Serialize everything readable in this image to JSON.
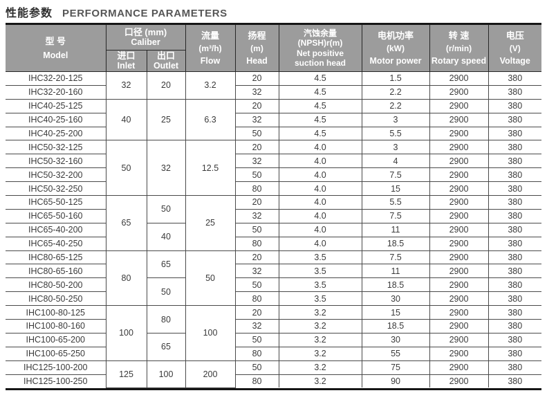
{
  "title": {
    "zh": "性能参数",
    "en": "PERFORMANCE PARAMETERS"
  },
  "colors": {
    "header_bg": "#9c9c9c",
    "header_text": "#ffffff",
    "title_zh": "#2f2f2f",
    "title_en": "#565656",
    "body_text": "#3a3a3a",
    "inner_border": "#494949",
    "outer_border": "#161616"
  },
  "table": {
    "header": {
      "model": {
        "zh": "型 号",
        "en": "Model"
      },
      "caliber": {
        "zh": "口径 (mm)",
        "en": "Caliber"
      },
      "inlet": {
        "zh": "进口",
        "en": "Inlet"
      },
      "outlet": {
        "zh": "出口",
        "en": "Outlet"
      },
      "flow": {
        "zh": "流量",
        "unit": "(m³/h)",
        "en": "Flow"
      },
      "head": {
        "zh": "扬程",
        "unit": "(m)",
        "en": "Head"
      },
      "npsh": {
        "zh": "汽蚀余量",
        "unit": "(NPSH)r(m)",
        "en_line1": "Net positive",
        "en_line2": "suction head"
      },
      "power": {
        "zh": "电机功率",
        "unit": "(kW)",
        "en": "Motor power"
      },
      "speed": {
        "zh": "转 速",
        "unit": "(r/min)",
        "en": "Rotary speed"
      },
      "voltage": {
        "zh": "电压",
        "unit": "(V)",
        "en": "Voltage"
      }
    },
    "rows": [
      [
        {
          "col": "model",
          "v": "IHC32-20-125"
        },
        {
          "col": "inlet",
          "v": "32",
          "rs": 2
        },
        {
          "col": "outlet",
          "v": "20",
          "rs": 2
        },
        {
          "col": "flow",
          "v": "3.2",
          "rs": 2
        },
        {
          "col": "head",
          "v": "20"
        },
        {
          "col": "npsh",
          "v": "4.5"
        },
        {
          "col": "power",
          "v": "1.5"
        },
        {
          "col": "speed",
          "v": "2900"
        },
        {
          "col": "voltage",
          "v": "380"
        }
      ],
      [
        {
          "col": "model",
          "v": "IHC32-20-160"
        },
        {
          "col": "head",
          "v": "32"
        },
        {
          "col": "npsh",
          "v": "4.5"
        },
        {
          "col": "power",
          "v": "2.2"
        },
        {
          "col": "speed",
          "v": "2900"
        },
        {
          "col": "voltage",
          "v": "380"
        }
      ],
      [
        {
          "col": "model",
          "v": "IHC40-25-125"
        },
        {
          "col": "inlet",
          "v": "40",
          "rs": 3
        },
        {
          "col": "outlet",
          "v": "25",
          "rs": 3
        },
        {
          "col": "flow",
          "v": "6.3",
          "rs": 3
        },
        {
          "col": "head",
          "v": "20"
        },
        {
          "col": "npsh",
          "v": "4.5"
        },
        {
          "col": "power",
          "v": "2.2"
        },
        {
          "col": "speed",
          "v": "2900"
        },
        {
          "col": "voltage",
          "v": "380"
        }
      ],
      [
        {
          "col": "model",
          "v": "IHC40-25-160"
        },
        {
          "col": "head",
          "v": "32"
        },
        {
          "col": "npsh",
          "v": "4.5"
        },
        {
          "col": "power",
          "v": "3"
        },
        {
          "col": "speed",
          "v": "2900"
        },
        {
          "col": "voltage",
          "v": "380"
        }
      ],
      [
        {
          "col": "model",
          "v": "IHC40-25-200"
        },
        {
          "col": "head",
          "v": "50"
        },
        {
          "col": "npsh",
          "v": "4.5"
        },
        {
          "col": "power",
          "v": "5.5"
        },
        {
          "col": "speed",
          "v": "2900"
        },
        {
          "col": "voltage",
          "v": "380"
        }
      ],
      [
        {
          "col": "model",
          "v": "IHC50-32-125"
        },
        {
          "col": "inlet",
          "v": "50",
          "rs": 4
        },
        {
          "col": "outlet",
          "v": "32",
          "rs": 4
        },
        {
          "col": "flow",
          "v": "12.5",
          "rs": 4
        },
        {
          "col": "head",
          "v": "20"
        },
        {
          "col": "npsh",
          "v": "4.0"
        },
        {
          "col": "power",
          "v": "3"
        },
        {
          "col": "speed",
          "v": "2900"
        },
        {
          "col": "voltage",
          "v": "380"
        }
      ],
      [
        {
          "col": "model",
          "v": "IHC50-32-160"
        },
        {
          "col": "head",
          "v": "32"
        },
        {
          "col": "npsh",
          "v": "4.0"
        },
        {
          "col": "power",
          "v": "4"
        },
        {
          "col": "speed",
          "v": "2900"
        },
        {
          "col": "voltage",
          "v": "380"
        }
      ],
      [
        {
          "col": "model",
          "v": "IHC50-32-200"
        },
        {
          "col": "head",
          "v": "50"
        },
        {
          "col": "npsh",
          "v": "4.0"
        },
        {
          "col": "power",
          "v": "7.5"
        },
        {
          "col": "speed",
          "v": "2900"
        },
        {
          "col": "voltage",
          "v": "380"
        }
      ],
      [
        {
          "col": "model",
          "v": "IHC50-32-250"
        },
        {
          "col": "head",
          "v": "80"
        },
        {
          "col": "npsh",
          "v": "4.0"
        },
        {
          "col": "power",
          "v": "15"
        },
        {
          "col": "speed",
          "v": "2900"
        },
        {
          "col": "voltage",
          "v": "380"
        }
      ],
      [
        {
          "col": "model",
          "v": "IHC65-50-125"
        },
        {
          "col": "inlet",
          "v": "65",
          "rs": 4
        },
        {
          "col": "outlet",
          "v": "50",
          "rs": 2
        },
        {
          "col": "flow",
          "v": "25",
          "rs": 4
        },
        {
          "col": "head",
          "v": "20"
        },
        {
          "col": "npsh",
          "v": "4.0"
        },
        {
          "col": "power",
          "v": "5.5"
        },
        {
          "col": "speed",
          "v": "2900"
        },
        {
          "col": "voltage",
          "v": "380"
        }
      ],
      [
        {
          "col": "model",
          "v": "IHC65-50-160"
        },
        {
          "col": "head",
          "v": "32"
        },
        {
          "col": "npsh",
          "v": "4.0"
        },
        {
          "col": "power",
          "v": "7.5"
        },
        {
          "col": "speed",
          "v": "2900"
        },
        {
          "col": "voltage",
          "v": "380"
        }
      ],
      [
        {
          "col": "model",
          "v": "IHC65-40-200"
        },
        {
          "col": "outlet",
          "v": "40",
          "rs": 2
        },
        {
          "col": "head",
          "v": "50"
        },
        {
          "col": "npsh",
          "v": "4.0"
        },
        {
          "col": "power",
          "v": "11"
        },
        {
          "col": "speed",
          "v": "2900"
        },
        {
          "col": "voltage",
          "v": "380"
        }
      ],
      [
        {
          "col": "model",
          "v": "IHC65-40-250"
        },
        {
          "col": "head",
          "v": "80"
        },
        {
          "col": "npsh",
          "v": "4.0"
        },
        {
          "col": "power",
          "v": "18.5"
        },
        {
          "col": "speed",
          "v": "2900"
        },
        {
          "col": "voltage",
          "v": "380"
        }
      ],
      [
        {
          "col": "model",
          "v": "IHC80-65-125"
        },
        {
          "col": "inlet",
          "v": "80",
          "rs": 4
        },
        {
          "col": "outlet",
          "v": "65",
          "rs": 2
        },
        {
          "col": "flow",
          "v": "50",
          "rs": 4
        },
        {
          "col": "head",
          "v": "20"
        },
        {
          "col": "npsh",
          "v": "3.5"
        },
        {
          "col": "power",
          "v": "7.5"
        },
        {
          "col": "speed",
          "v": "2900"
        },
        {
          "col": "voltage",
          "v": "380"
        }
      ],
      [
        {
          "col": "model",
          "v": "IHC80-65-160"
        },
        {
          "col": "head",
          "v": "32"
        },
        {
          "col": "npsh",
          "v": "3.5"
        },
        {
          "col": "power",
          "v": "11"
        },
        {
          "col": "speed",
          "v": "2900"
        },
        {
          "col": "voltage",
          "v": "380"
        }
      ],
      [
        {
          "col": "model",
          "v": "IHC80-50-200"
        },
        {
          "col": "outlet",
          "v": "50",
          "rs": 2
        },
        {
          "col": "head",
          "v": "50"
        },
        {
          "col": "npsh",
          "v": "3.5"
        },
        {
          "col": "power",
          "v": "18.5"
        },
        {
          "col": "speed",
          "v": "2900"
        },
        {
          "col": "voltage",
          "v": "380"
        }
      ],
      [
        {
          "col": "model",
          "v": "IHC80-50-250"
        },
        {
          "col": "head",
          "v": "80"
        },
        {
          "col": "npsh",
          "v": "3.5"
        },
        {
          "col": "power",
          "v": "30"
        },
        {
          "col": "speed",
          "v": "2900"
        },
        {
          "col": "voltage",
          "v": "380"
        }
      ],
      [
        {
          "col": "model",
          "v": "IHC100-80-125"
        },
        {
          "col": "inlet",
          "v": "100",
          "rs": 4
        },
        {
          "col": "outlet",
          "v": "80",
          "rs": 2
        },
        {
          "col": "flow",
          "v": "100",
          "rs": 4
        },
        {
          "col": "head",
          "v": "20"
        },
        {
          "col": "npsh",
          "v": "3.2"
        },
        {
          "col": "power",
          "v": "15"
        },
        {
          "col": "speed",
          "v": "2900"
        },
        {
          "col": "voltage",
          "v": "380"
        }
      ],
      [
        {
          "col": "model",
          "v": "IHC100-80-160"
        },
        {
          "col": "head",
          "v": "32"
        },
        {
          "col": "npsh",
          "v": "3.2"
        },
        {
          "col": "power",
          "v": "18.5"
        },
        {
          "col": "speed",
          "v": "2900"
        },
        {
          "col": "voltage",
          "v": "380"
        }
      ],
      [
        {
          "col": "model",
          "v": "IHC100-65-200"
        },
        {
          "col": "outlet",
          "v": "65",
          "rs": 2
        },
        {
          "col": "head",
          "v": "50"
        },
        {
          "col": "npsh",
          "v": "3.2"
        },
        {
          "col": "power",
          "v": "30"
        },
        {
          "col": "speed",
          "v": "2900"
        },
        {
          "col": "voltage",
          "v": "380"
        }
      ],
      [
        {
          "col": "model",
          "v": "IHC100-65-250"
        },
        {
          "col": "head",
          "v": "80"
        },
        {
          "col": "npsh",
          "v": "3.2"
        },
        {
          "col": "power",
          "v": "55"
        },
        {
          "col": "speed",
          "v": "2900"
        },
        {
          "col": "voltage",
          "v": "380"
        }
      ],
      [
        {
          "col": "model",
          "v": "IHC125-100-200"
        },
        {
          "col": "inlet",
          "v": "125",
          "rs": 2
        },
        {
          "col": "outlet",
          "v": "100",
          "rs": 2
        },
        {
          "col": "flow",
          "v": "200",
          "rs": 2
        },
        {
          "col": "head",
          "v": "50"
        },
        {
          "col": "npsh",
          "v": "3.2"
        },
        {
          "col": "power",
          "v": "75"
        },
        {
          "col": "speed",
          "v": "2900"
        },
        {
          "col": "voltage",
          "v": "380"
        }
      ],
      [
        {
          "col": "model",
          "v": "IHC125-100-250"
        },
        {
          "col": "head",
          "v": "80"
        },
        {
          "col": "npsh",
          "v": "3.2"
        },
        {
          "col": "power",
          "v": "90"
        },
        {
          "col": "speed",
          "v": "2900"
        },
        {
          "col": "voltage",
          "v": "380"
        }
      ]
    ]
  }
}
